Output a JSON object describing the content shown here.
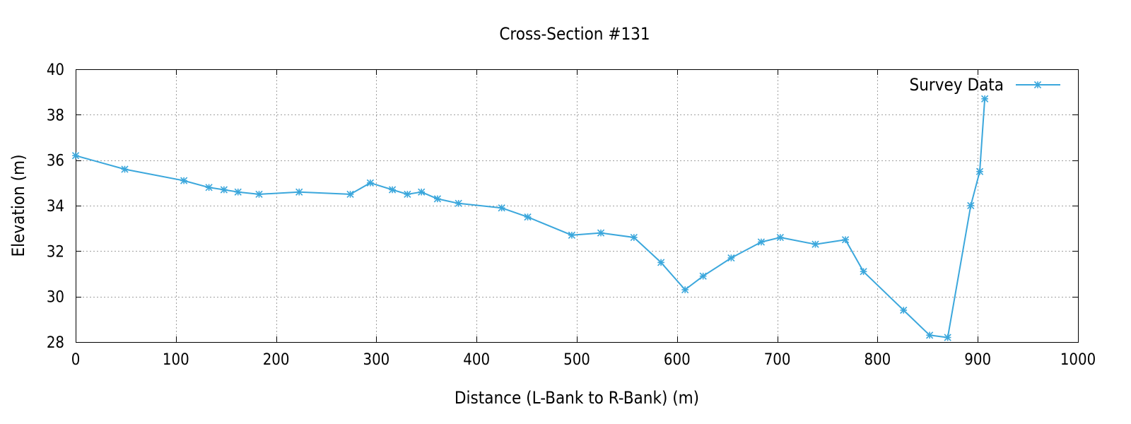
{
  "chart_data": {
    "type": "line",
    "title": "Cross-Section #131",
    "xlabel": "Distance (L-Bank to R-Bank) (m)",
    "ylabel": "Elevation (m)",
    "xlim": [
      0,
      1000
    ],
    "ylim": [
      28,
      40
    ],
    "xticks": [
      0,
      100,
      200,
      300,
      400,
      500,
      600,
      700,
      800,
      900,
      1000
    ],
    "yticks": [
      28,
      30,
      32,
      34,
      36,
      38,
      40
    ],
    "grid": true,
    "legend_position": "top-right",
    "series": [
      {
        "name": "Survey Data",
        "color": "#3ba7dc",
        "marker": "star",
        "x": [
          0,
          49,
          108,
          133,
          148,
          162,
          183,
          223,
          274,
          294,
          316,
          331,
          345,
          361,
          382,
          425,
          451,
          495,
          524,
          557,
          584,
          608,
          626,
          654,
          684,
          703,
          738,
          768,
          786,
          826,
          852,
          870,
          893,
          902,
          907
        ],
        "y": [
          36.2,
          35.6,
          35.1,
          34.8,
          34.7,
          34.6,
          34.5,
          34.6,
          34.5,
          35.0,
          34.7,
          34.5,
          34.6,
          34.3,
          34.1,
          33.9,
          33.5,
          32.7,
          32.8,
          32.6,
          31.5,
          30.3,
          30.9,
          31.7,
          32.4,
          32.6,
          32.3,
          32.5,
          31.1,
          29.4,
          28.3,
          28.2,
          34.0,
          35.5,
          38.7
        ]
      }
    ]
  }
}
